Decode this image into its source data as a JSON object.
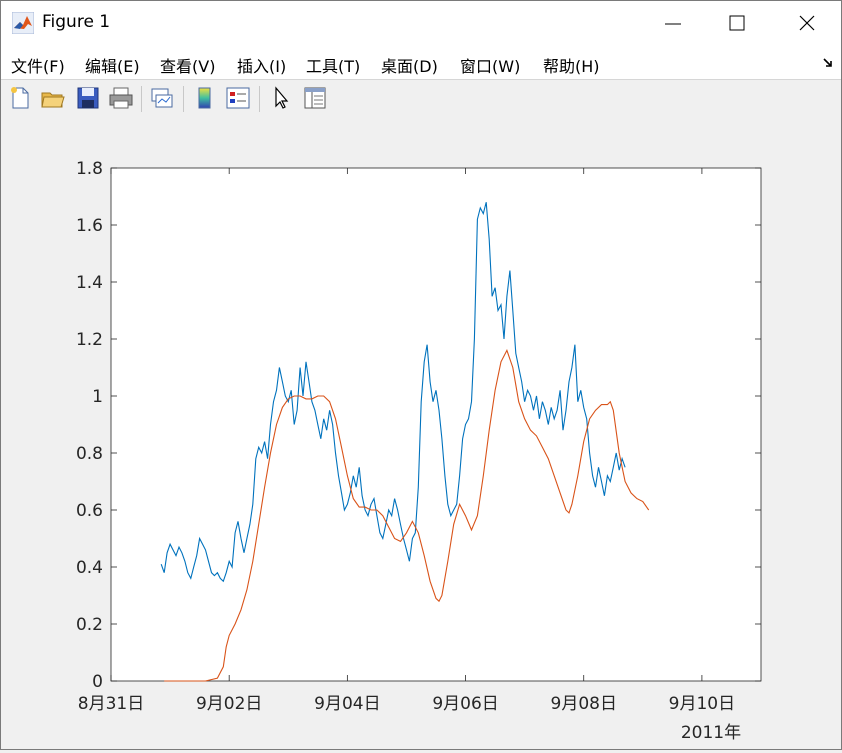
{
  "window": {
    "title": "Figure 1"
  },
  "menu": [
    {
      "label": "文件(F)"
    },
    {
      "label": "编辑(E)"
    },
    {
      "label": "查看(V)"
    },
    {
      "label": "插入(I)"
    },
    {
      "label": "工具(T)"
    },
    {
      "label": "桌面(D)"
    },
    {
      "label": "窗口(W)"
    },
    {
      "label": "帮助(H)"
    }
  ],
  "toolbar": {
    "icons": [
      "new-figure-icon",
      "open-file-icon",
      "save-icon",
      "print-icon",
      "link-plot-icon",
      "colorbar-icon",
      "legend-icon",
      "pointer-icon",
      "property-inspector-icon"
    ]
  },
  "chart_data": {
    "type": "line",
    "x_axis": {
      "ticks": [
        "8月31日",
        "9月02日",
        "9月04日",
        "9月06日",
        "9月08日",
        "9月10日"
      ],
      "secondary_label": "2011年"
    },
    "ylim": [
      0,
      1.8
    ],
    "yticks": [
      0,
      0.2,
      0.4,
      0.6,
      0.8,
      1,
      1.2,
      1.4,
      1.6,
      1.8
    ],
    "grid": false,
    "series": [
      {
        "color": "#0072BD",
        "points": [
          [
            0.85,
            0.41
          ],
          [
            0.9,
            0.38
          ],
          [
            0.95,
            0.45
          ],
          [
            1.0,
            0.48
          ],
          [
            1.05,
            0.46
          ],
          [
            1.1,
            0.44
          ],
          [
            1.15,
            0.47
          ],
          [
            1.2,
            0.45
          ],
          [
            1.25,
            0.42
          ],
          [
            1.3,
            0.38
          ],
          [
            1.35,
            0.36
          ],
          [
            1.4,
            0.4
          ],
          [
            1.45,
            0.44
          ],
          [
            1.5,
            0.5
          ],
          [
            1.55,
            0.48
          ],
          [
            1.6,
            0.46
          ],
          [
            1.65,
            0.42
          ],
          [
            1.7,
            0.38
          ],
          [
            1.75,
            0.37
          ],
          [
            1.8,
            0.38
          ],
          [
            1.85,
            0.36
          ],
          [
            1.9,
            0.35
          ],
          [
            1.95,
            0.38
          ],
          [
            2.0,
            0.42
          ],
          [
            2.05,
            0.4
          ],
          [
            2.1,
            0.52
          ],
          [
            2.15,
            0.56
          ],
          [
            2.2,
            0.5
          ],
          [
            2.25,
            0.45
          ],
          [
            2.3,
            0.5
          ],
          [
            2.35,
            0.55
          ],
          [
            2.4,
            0.62
          ],
          [
            2.45,
            0.78
          ],
          [
            2.5,
            0.82
          ],
          [
            2.55,
            0.8
          ],
          [
            2.6,
            0.84
          ],
          [
            2.65,
            0.78
          ],
          [
            2.7,
            0.9
          ],
          [
            2.75,
            0.98
          ],
          [
            2.8,
            1.02
          ],
          [
            2.85,
            1.1
          ],
          [
            2.9,
            1.05
          ],
          [
            2.95,
            1.0
          ],
          [
            3.0,
            0.98
          ],
          [
            3.05,
            1.02
          ],
          [
            3.1,
            0.9
          ],
          [
            3.15,
            0.95
          ],
          [
            3.2,
            1.1
          ],
          [
            3.25,
            1.0
          ],
          [
            3.3,
            1.12
          ],
          [
            3.35,
            1.05
          ],
          [
            3.4,
            0.98
          ],
          [
            3.45,
            0.95
          ],
          [
            3.5,
            0.9
          ],
          [
            3.55,
            0.85
          ],
          [
            3.6,
            0.92
          ],
          [
            3.65,
            0.88
          ],
          [
            3.7,
            0.95
          ],
          [
            3.75,
            0.9
          ],
          [
            3.8,
            0.8
          ],
          [
            3.85,
            0.72
          ],
          [
            3.9,
            0.66
          ],
          [
            3.95,
            0.6
          ],
          [
            4.0,
            0.62
          ],
          [
            4.05,
            0.66
          ],
          [
            4.1,
            0.72
          ],
          [
            4.15,
            0.68
          ],
          [
            4.2,
            0.75
          ],
          [
            4.25,
            0.65
          ],
          [
            4.3,
            0.6
          ],
          [
            4.35,
            0.58
          ],
          [
            4.4,
            0.62
          ],
          [
            4.45,
            0.64
          ],
          [
            4.5,
            0.58
          ],
          [
            4.55,
            0.52
          ],
          [
            4.6,
            0.5
          ],
          [
            4.65,
            0.55
          ],
          [
            4.7,
            0.6
          ],
          [
            4.75,
            0.58
          ],
          [
            4.8,
            0.64
          ],
          [
            4.85,
            0.6
          ],
          [
            4.9,
            0.55
          ],
          [
            4.95,
            0.5
          ],
          [
            5.0,
            0.46
          ],
          [
            5.05,
            0.42
          ],
          [
            5.1,
            0.5
          ],
          [
            5.15,
            0.52
          ],
          [
            5.2,
            0.68
          ],
          [
            5.25,
            0.98
          ],
          [
            5.3,
            1.12
          ],
          [
            5.35,
            1.18
          ],
          [
            5.4,
            1.05
          ],
          [
            5.45,
            0.98
          ],
          [
            5.5,
            1.02
          ],
          [
            5.55,
            0.95
          ],
          [
            5.6,
            0.85
          ],
          [
            5.65,
            0.72
          ],
          [
            5.7,
            0.62
          ],
          [
            5.75,
            0.58
          ],
          [
            5.8,
            0.6
          ],
          [
            5.85,
            0.62
          ],
          [
            5.9,
            0.72
          ],
          [
            5.95,
            0.85
          ],
          [
            6.0,
            0.9
          ],
          [
            6.05,
            0.92
          ],
          [
            6.1,
            0.98
          ],
          [
            6.15,
            1.2
          ],
          [
            6.2,
            1.62
          ],
          [
            6.25,
            1.66
          ],
          [
            6.3,
            1.64
          ],
          [
            6.35,
            1.68
          ],
          [
            6.4,
            1.55
          ],
          [
            6.45,
            1.35
          ],
          [
            6.5,
            1.38
          ],
          [
            6.55,
            1.3
          ],
          [
            6.6,
            1.32
          ],
          [
            6.65,
            1.2
          ],
          [
            6.7,
            1.35
          ],
          [
            6.75,
            1.44
          ],
          [
            6.8,
            1.3
          ],
          [
            6.85,
            1.15
          ],
          [
            6.9,
            1.1
          ],
          [
            6.95,
            1.05
          ],
          [
            7.0,
            0.98
          ],
          [
            7.05,
            1.02
          ],
          [
            7.1,
            1.0
          ],
          [
            7.15,
            0.95
          ],
          [
            7.2,
            1.0
          ],
          [
            7.25,
            0.92
          ],
          [
            7.3,
            0.98
          ],
          [
            7.35,
            0.95
          ],
          [
            7.4,
            0.9
          ],
          [
            7.45,
            0.96
          ],
          [
            7.5,
            0.92
          ],
          [
            7.55,
            0.95
          ],
          [
            7.6,
            1.02
          ],
          [
            7.65,
            0.88
          ],
          [
            7.7,
            0.95
          ],
          [
            7.75,
            1.05
          ],
          [
            7.8,
            1.1
          ],
          [
            7.85,
            1.18
          ],
          [
            7.9,
            0.98
          ],
          [
            7.95,
            1.02
          ],
          [
            8.0,
            0.96
          ],
          [
            8.05,
            0.92
          ],
          [
            8.1,
            0.8
          ],
          [
            8.15,
            0.72
          ],
          [
            8.2,
            0.68
          ],
          [
            8.25,
            0.75
          ],
          [
            8.3,
            0.7
          ],
          [
            8.35,
            0.65
          ],
          [
            8.4,
            0.72
          ],
          [
            8.45,
            0.7
          ],
          [
            8.5,
            0.75
          ],
          [
            8.55,
            0.8
          ],
          [
            8.6,
            0.74
          ],
          [
            8.65,
            0.78
          ],
          [
            8.7,
            0.75
          ]
        ]
      },
      {
        "color": "#D95319",
        "points": [
          [
            0.9,
            0.0
          ],
          [
            1.0,
            0.0
          ],
          [
            1.2,
            0.0
          ],
          [
            1.4,
            0.0
          ],
          [
            1.6,
            0.0
          ],
          [
            1.8,
            0.01
          ],
          [
            1.9,
            0.05
          ],
          [
            1.95,
            0.12
          ],
          [
            2.0,
            0.16
          ],
          [
            2.1,
            0.2
          ],
          [
            2.2,
            0.25
          ],
          [
            2.3,
            0.32
          ],
          [
            2.4,
            0.42
          ],
          [
            2.5,
            0.55
          ],
          [
            2.6,
            0.68
          ],
          [
            2.7,
            0.8
          ],
          [
            2.8,
            0.9
          ],
          [
            2.9,
            0.96
          ],
          [
            3.0,
            0.99
          ],
          [
            3.1,
            1.0
          ],
          [
            3.2,
            1.0
          ],
          [
            3.3,
            0.99
          ],
          [
            3.4,
            0.99
          ],
          [
            3.5,
            1.0
          ],
          [
            3.6,
            1.0
          ],
          [
            3.7,
            0.98
          ],
          [
            3.8,
            0.92
          ],
          [
            3.9,
            0.82
          ],
          [
            4.0,
            0.72
          ],
          [
            4.1,
            0.64
          ],
          [
            4.2,
            0.61
          ],
          [
            4.3,
            0.61
          ],
          [
            4.4,
            0.6
          ],
          [
            4.5,
            0.6
          ],
          [
            4.6,
            0.58
          ],
          [
            4.7,
            0.54
          ],
          [
            4.8,
            0.5
          ],
          [
            4.9,
            0.49
          ],
          [
            5.0,
            0.52
          ],
          [
            5.1,
            0.56
          ],
          [
            5.2,
            0.52
          ],
          [
            5.3,
            0.44
          ],
          [
            5.4,
            0.35
          ],
          [
            5.5,
            0.29
          ],
          [
            5.55,
            0.28
          ],
          [
            5.6,
            0.3
          ],
          [
            5.7,
            0.42
          ],
          [
            5.8,
            0.55
          ],
          [
            5.9,
            0.62
          ],
          [
            6.0,
            0.58
          ],
          [
            6.1,
            0.53
          ],
          [
            6.2,
            0.58
          ],
          [
            6.3,
            0.72
          ],
          [
            6.4,
            0.88
          ],
          [
            6.5,
            1.02
          ],
          [
            6.6,
            1.12
          ],
          [
            6.7,
            1.16
          ],
          [
            6.8,
            1.1
          ],
          [
            6.9,
            0.98
          ],
          [
            7.0,
            0.92
          ],
          [
            7.1,
            0.88
          ],
          [
            7.2,
            0.86
          ],
          [
            7.3,
            0.82
          ],
          [
            7.4,
            0.78
          ],
          [
            7.5,
            0.72
          ],
          [
            7.6,
            0.66
          ],
          [
            7.7,
            0.6
          ],
          [
            7.75,
            0.59
          ],
          [
            7.8,
            0.62
          ],
          [
            7.9,
            0.72
          ],
          [
            8.0,
            0.84
          ],
          [
            8.1,
            0.92
          ],
          [
            8.2,
            0.95
          ],
          [
            8.3,
            0.97
          ],
          [
            8.4,
            0.97
          ],
          [
            8.45,
            0.98
          ],
          [
            8.5,
            0.95
          ],
          [
            8.6,
            0.8
          ],
          [
            8.7,
            0.7
          ],
          [
            8.8,
            0.66
          ],
          [
            8.9,
            0.64
          ],
          [
            9.0,
            0.63
          ],
          [
            9.1,
            0.6
          ]
        ]
      }
    ]
  }
}
